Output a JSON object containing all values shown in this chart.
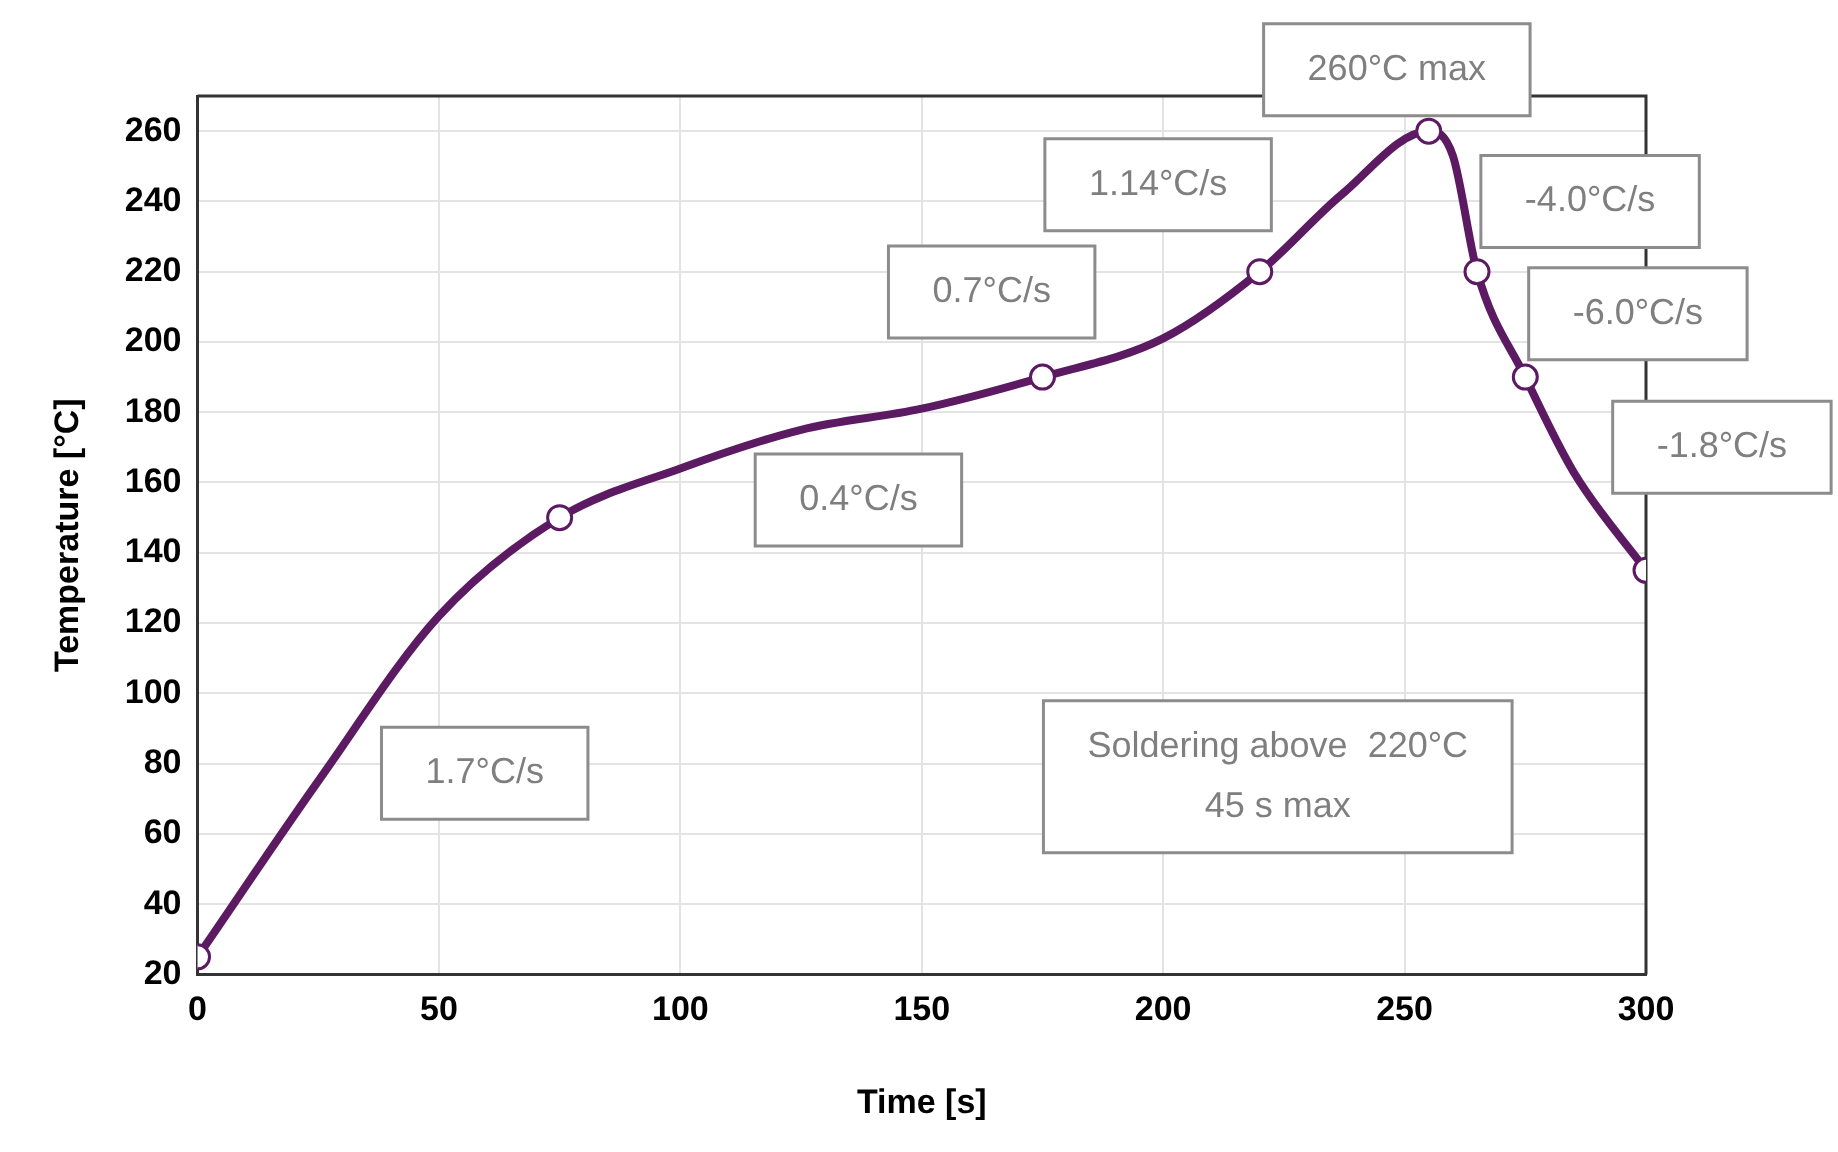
{
  "chart_data": {
    "type": "line",
    "xlabel": "Time [s]",
    "ylabel": "Temperature [°C]",
    "xlim": [
      0,
      300
    ],
    "xticks": [
      0,
      50,
      100,
      150,
      200,
      250,
      300
    ],
    "ylim": [
      20,
      270
    ],
    "yticks": [
      20,
      40,
      60,
      80,
      100,
      120,
      140,
      160,
      180,
      200,
      220,
      240,
      260
    ],
    "grid": true,
    "legend": false,
    "series": [
      {
        "color": "#5c1a63",
        "marker": "none",
        "x": [
          0,
          25,
          50,
          75,
          100,
          125,
          150,
          175,
          200,
          220,
          237,
          255,
          260,
          265,
          275,
          285,
          300
        ],
        "values": [
          25,
          75,
          122,
          150,
          164,
          175,
          181,
          190,
          201,
          220,
          242,
          260,
          253,
          220,
          190,
          163,
          135
        ]
      },
      {
        "type": "scatter",
        "color": "#5c1a63",
        "marker": "circle",
        "x": [
          0,
          75,
          175,
          220,
          255,
          265,
          275,
          300
        ],
        "values": [
          25,
          150,
          190,
          220,
          260,
          220,
          190,
          135
        ]
      }
    ],
    "annotations": [
      "1.7°C/s",
      "0.4°C/s",
      "0.7°C/s",
      "1.14°C/s",
      "260°C max",
      "-4.0°C/s",
      "-6.0°C/s",
      "-1.8°C/s",
      "Soldering above  220°C\n45 s max"
    ]
  }
}
